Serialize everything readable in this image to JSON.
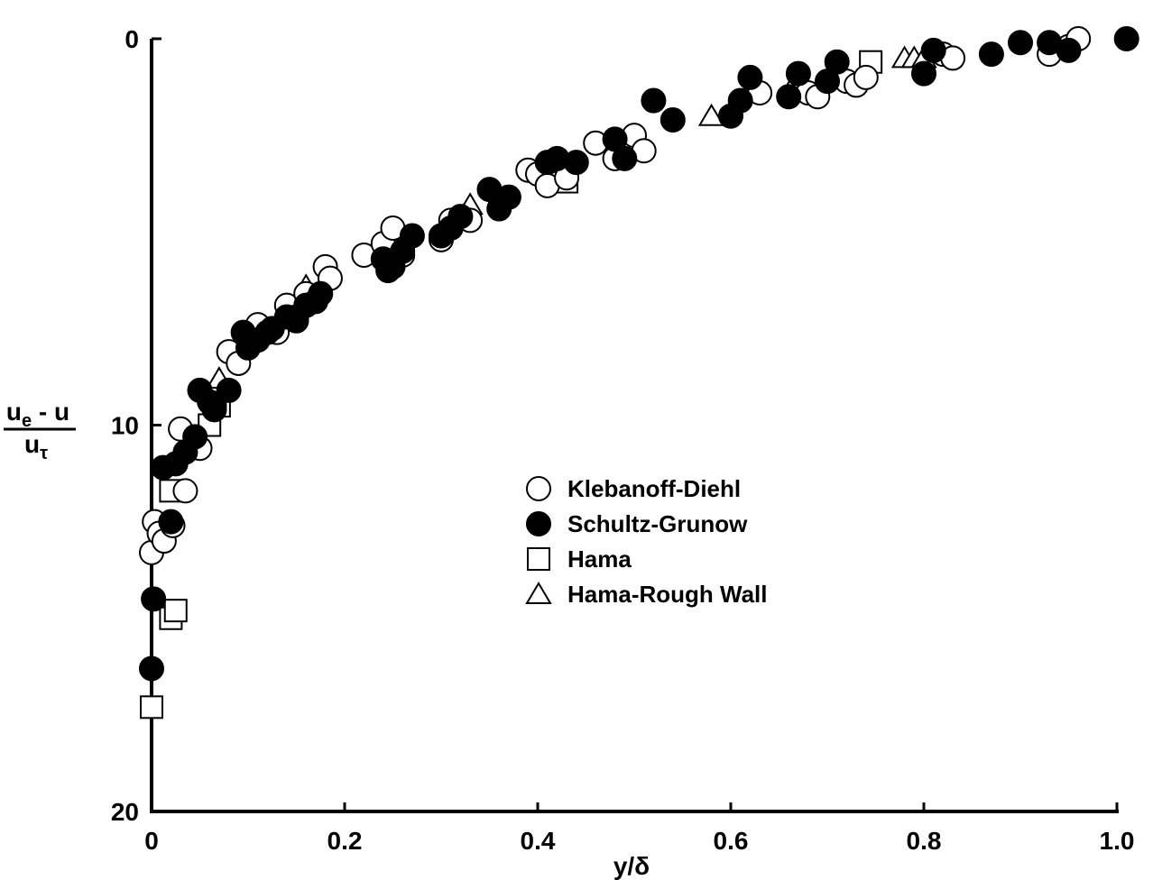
{
  "chart_data": {
    "type": "scatter",
    "xlabel": "y/δ",
    "ylabel": {
      "numerator_main": "u",
      "numerator_sub": "e",
      "numerator_rest": " - u",
      "denominator_main": "u",
      "denominator_sub": "τ"
    },
    "xlim": [
      0,
      1.0
    ],
    "ylim": [
      0,
      20
    ],
    "y_inverted": true,
    "x_ticks": [
      "0",
      "0.2",
      "0.4",
      "0.6",
      "0.8",
      "1.0"
    ],
    "x_tick_values": [
      0,
      0.2,
      0.4,
      0.6,
      0.8,
      1.0
    ],
    "y_ticks": [
      "0",
      "10",
      "20"
    ],
    "y_tick_values": [
      0,
      10,
      20
    ],
    "grid": false,
    "legend_position": "center",
    "series": [
      {
        "name": "Klebanoff-Diehl",
        "marker": "circle-open",
        "x": [
          0.0,
          0.003,
          0.008,
          0.013,
          0.022,
          0.03,
          0.035,
          0.05,
          0.065,
          0.08,
          0.09,
          0.11,
          0.13,
          0.14,
          0.15,
          0.16,
          0.18,
          0.185,
          0.22,
          0.24,
          0.25,
          0.26,
          0.3,
          0.31,
          0.33,
          0.39,
          0.4,
          0.41,
          0.43,
          0.46,
          0.48,
          0.5,
          0.51,
          0.63,
          0.67,
          0.68,
          0.69,
          0.72,
          0.73,
          0.74,
          0.82,
          0.83,
          0.93,
          0.95,
          0.96
        ],
        "y": [
          13.3,
          12.5,
          12.8,
          13.0,
          12.6,
          10.1,
          11.7,
          10.6,
          9.5,
          8.1,
          8.4,
          7.4,
          7.6,
          6.9,
          7.2,
          6.6,
          5.9,
          6.2,
          5.6,
          5.3,
          4.9,
          5.6,
          5.2,
          4.7,
          4.7,
          3.4,
          3.5,
          3.8,
          3.6,
          2.7,
          3.1,
          2.5,
          2.9,
          1.4,
          1.3,
          1.4,
          1.5,
          1.1,
          1.2,
          1.0,
          0.4,
          0.5,
          0.4,
          0.2,
          0.0
        ]
      },
      {
        "name": "Schultz-Grunow",
        "marker": "circle-filled",
        "x": [
          0.0,
          0.002,
          0.012,
          0.02,
          0.025,
          0.035,
          0.045,
          0.05,
          0.06,
          0.065,
          0.08,
          0.095,
          0.1,
          0.11,
          0.12,
          0.125,
          0.14,
          0.15,
          0.16,
          0.17,
          0.175,
          0.24,
          0.245,
          0.25,
          0.26,
          0.27,
          0.3,
          0.31,
          0.32,
          0.35,
          0.36,
          0.37,
          0.41,
          0.42,
          0.44,
          0.48,
          0.49,
          0.52,
          0.54,
          0.6,
          0.61,
          0.62,
          0.66,
          0.67,
          0.7,
          0.71,
          0.8,
          0.81,
          0.87,
          0.9,
          0.93,
          0.95,
          1.01
        ],
        "y": [
          16.3,
          14.5,
          11.1,
          12.5,
          11.0,
          10.7,
          10.3,
          9.1,
          9.4,
          9.6,
          9.1,
          7.6,
          8.0,
          7.8,
          7.6,
          7.5,
          7.2,
          7.3,
          6.9,
          6.8,
          6.6,
          5.7,
          6.0,
          5.9,
          5.5,
          5.1,
          5.1,
          4.9,
          4.6,
          3.9,
          4.4,
          4.1,
          3.2,
          3.1,
          3.2,
          2.6,
          3.1,
          1.6,
          2.1,
          2.0,
          1.6,
          1.0,
          1.5,
          0.9,
          1.1,
          0.6,
          0.9,
          0.3,
          0.4,
          0.1,
          0.1,
          0.3,
          0.0
        ]
      },
      {
        "name": "Hama",
        "marker": "square-open",
        "x": [
          0.0,
          0.02,
          0.025,
          0.02,
          0.06,
          0.07,
          0.43,
          0.745
        ],
        "y": [
          17.3,
          15.0,
          14.8,
          11.7,
          10.0,
          9.5,
          3.7,
          0.6
        ]
      },
      {
        "name": "Hama-Rough Wall",
        "marker": "triangle-open",
        "x": [
          0.07,
          0.16,
          0.33,
          0.58,
          0.78,
          0.79,
          0.8
        ],
        "y": [
          8.8,
          6.4,
          4.3,
          2.0,
          0.5,
          0.5,
          0.5
        ]
      }
    ]
  }
}
